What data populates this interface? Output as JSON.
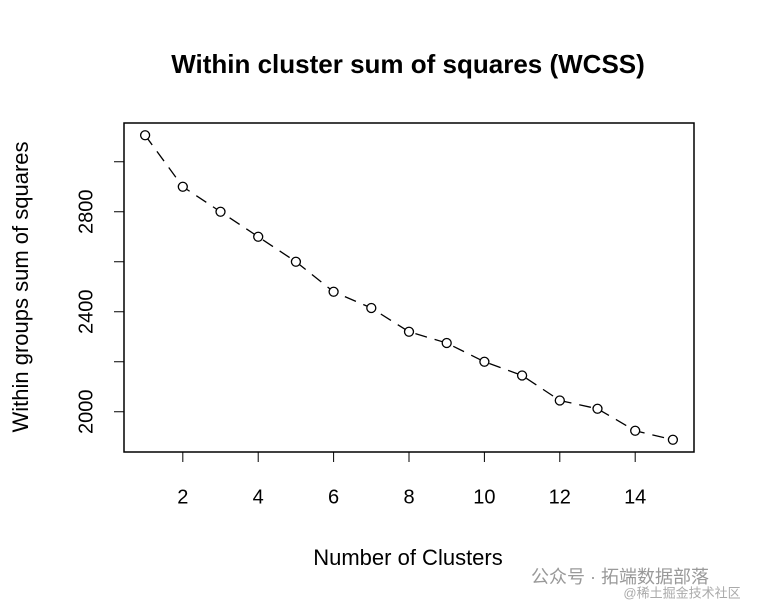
{
  "chart_data": {
    "type": "line",
    "title": "Within cluster sum of squares (WCSS)",
    "x_label": "Number of Clusters",
    "y_label": "Within groups sum of squares",
    "x": [
      1,
      2,
      3,
      4,
      5,
      6,
      7,
      8,
      9,
      10,
      11,
      12,
      13,
      14,
      15
    ],
    "values": [
      3106,
      2900,
      2800,
      2700,
      2600,
      2480,
      2415,
      2320,
      2275,
      2200,
      2145,
      2045,
      2012,
      1924,
      1888
    ],
    "color": "#000000",
    "xlim": [
      0.44,
      15.56
    ],
    "ylim": [
      1839,
      3155
    ],
    "xticks": [
      2,
      4,
      6,
      8,
      10,
      12,
      14
    ],
    "yticks": [
      2000,
      2400,
      2800
    ],
    "y_minor_ticks": [
      2200,
      2600,
      3000
    ],
    "line_style": "dashed",
    "markers": "open-circle",
    "watermark": [
      "公众号 · 拓端数据部落",
      "@稀土掘金技术社区"
    ]
  }
}
